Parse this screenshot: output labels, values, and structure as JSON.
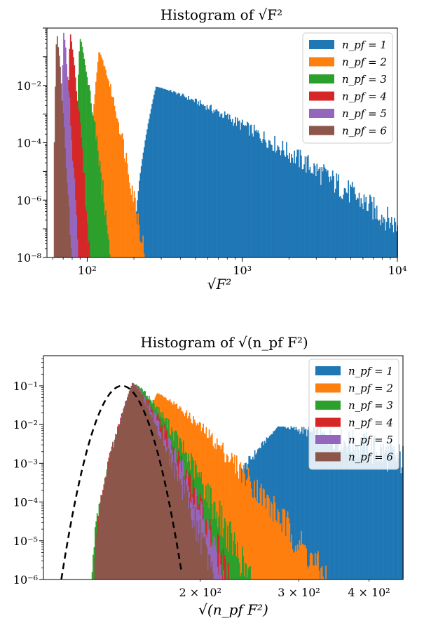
{
  "chart_data": [
    {
      "type": "histogram",
      "title": "Histogram of √F²",
      "xlabel": "√F²",
      "x_scale": "log",
      "y_scale": "log",
      "xlim": [
        55,
        10000
      ],
      "ylim": [
        1e-08,
        1
      ],
      "x_ticks": [
        {
          "value": 100,
          "label": "10²"
        },
        {
          "value": 1000,
          "label": "10³"
        },
        {
          "value": 10000,
          "label": "10⁴"
        }
      ],
      "y_ticks": [
        {
          "value": 0.01,
          "label": "10⁻²"
        },
        {
          "value": 0.0001,
          "label": "10⁻⁴"
        },
        {
          "value": 1e-06,
          "label": "10⁻⁶"
        },
        {
          "value": 1e-08,
          "label": "10⁻⁸"
        }
      ],
      "legend_position": "top-right",
      "series": [
        {
          "name": "n_pf = 1",
          "color": "#1f77b4",
          "x_start": 200,
          "peak_x": 275,
          "peak_y": 0.009,
          "x_end": 10000,
          "y_at_end": 1.2e-07
        },
        {
          "name": "n_pf = 2",
          "color": "#ff7f0e",
          "x_start": 99,
          "peak_x": 118,
          "peak_y": 0.15,
          "x_end": 235,
          "y_at_end": 1e-08
        },
        {
          "name": "n_pf = 3",
          "color": "#2ca02c",
          "x_start": 82,
          "peak_x": 89,
          "peak_y": 0.45,
          "x_end": 140,
          "y_at_end": 1e-08
        },
        {
          "name": "n_pf = 4",
          "color": "#d62728",
          "x_start": 72,
          "peak_x": 77,
          "peak_y": 0.7,
          "x_end": 103,
          "y_at_end": 1e-08
        },
        {
          "name": "n_pf = 5",
          "color": "#9467bd",
          "x_start": 66,
          "peak_x": 70,
          "peak_y": 0.75,
          "x_end": 87,
          "y_at_end": 1e-08
        },
        {
          "name": "n_pf = 6",
          "color": "#8c564b",
          "x_start": 60,
          "peak_x": 63,
          "peak_y": 0.8,
          "x_end": 78,
          "y_at_end": 1e-08
        }
      ]
    },
    {
      "type": "histogram",
      "title": "Histogram of √(n_pf F²)",
      "xlabel": "√(n_pf F²)",
      "x_scale": "log",
      "y_scale": "log",
      "xlim": [
        105,
        460
      ],
      "ylim": [
        1e-06,
        0.6
      ],
      "x_ticks": [
        {
          "value": 200,
          "label": "2 × 10²"
        },
        {
          "value": 300,
          "label": "3 × 10²"
        },
        {
          "value": 400,
          "label": "4 × 10²"
        }
      ],
      "y_ticks": [
        {
          "value": 0.1,
          "label": "10⁻¹"
        },
        {
          "value": 0.01,
          "label": "10⁻²"
        },
        {
          "value": 0.001,
          "label": "10⁻³"
        },
        {
          "value": 0.0001,
          "label": "10⁻⁴"
        },
        {
          "value": 1e-05,
          "label": "10⁻⁵"
        },
        {
          "value": 1e-06,
          "label": "10⁻⁶"
        }
      ],
      "legend_position": "top-right",
      "series": [
        {
          "name": "n_pf = 1",
          "color": "#1f77b4",
          "x_start": 200,
          "peak_x": 275,
          "peak_y": 0.009,
          "x_end": 460,
          "y_at_end": 0.0012
        },
        {
          "name": "n_pf = 2",
          "color": "#ff7f0e",
          "x_start": 140,
          "peak_x": 167,
          "peak_y": 0.065,
          "x_end": 335,
          "y_at_end": 1e-06
        },
        {
          "name": "n_pf = 3",
          "color": "#2ca02c",
          "x_start": 128,
          "peak_x": 153,
          "peak_y": 0.11,
          "x_end": 245,
          "y_at_end": 1e-06
        },
        {
          "name": "n_pf = 4",
          "color": "#d62728",
          "x_start": 129,
          "peak_x": 151,
          "peak_y": 0.12,
          "x_end": 225,
          "y_at_end": 1e-06
        },
        {
          "name": "n_pf = 5",
          "color": "#9467bd",
          "x_start": 130,
          "peak_x": 151,
          "peak_y": 0.12,
          "x_end": 222,
          "y_at_end": 1e-06
        },
        {
          "name": "n_pf = 6",
          "color": "#8c564b",
          "x_start": 129,
          "peak_x": 151,
          "peak_y": 0.12,
          "x_end": 212,
          "y_at_end": 1e-06
        }
      ],
      "reference_curve": {
        "style": "dashed",
        "color": "#000000",
        "center_x": 145,
        "peak_y": 0.1,
        "x_start": 113,
        "x_end": 185
      }
    }
  ]
}
